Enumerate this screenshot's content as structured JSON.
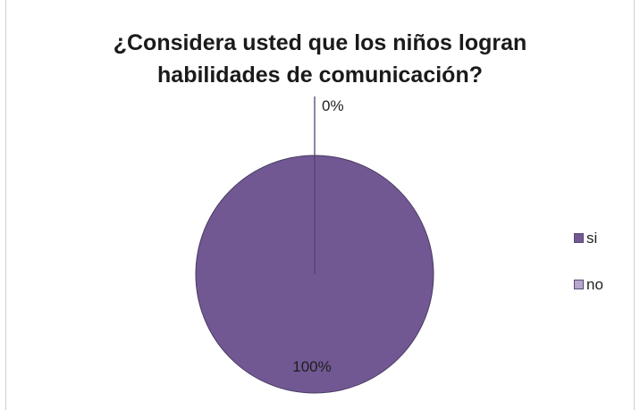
{
  "chart_data": {
    "type": "pie",
    "title": "¿Considera usted que los niños logran habilidades de comunicación?",
    "title_lines": [
      "¿Considera usted que los niños logran",
      "habilidades de comunicación?"
    ],
    "categories": [
      "si",
      "no"
    ],
    "values": [
      100,
      0
    ],
    "data_labels": [
      "100%",
      "0%"
    ],
    "colors": [
      "#715893",
      "#b6a6cc"
    ],
    "legend_position": "right"
  }
}
